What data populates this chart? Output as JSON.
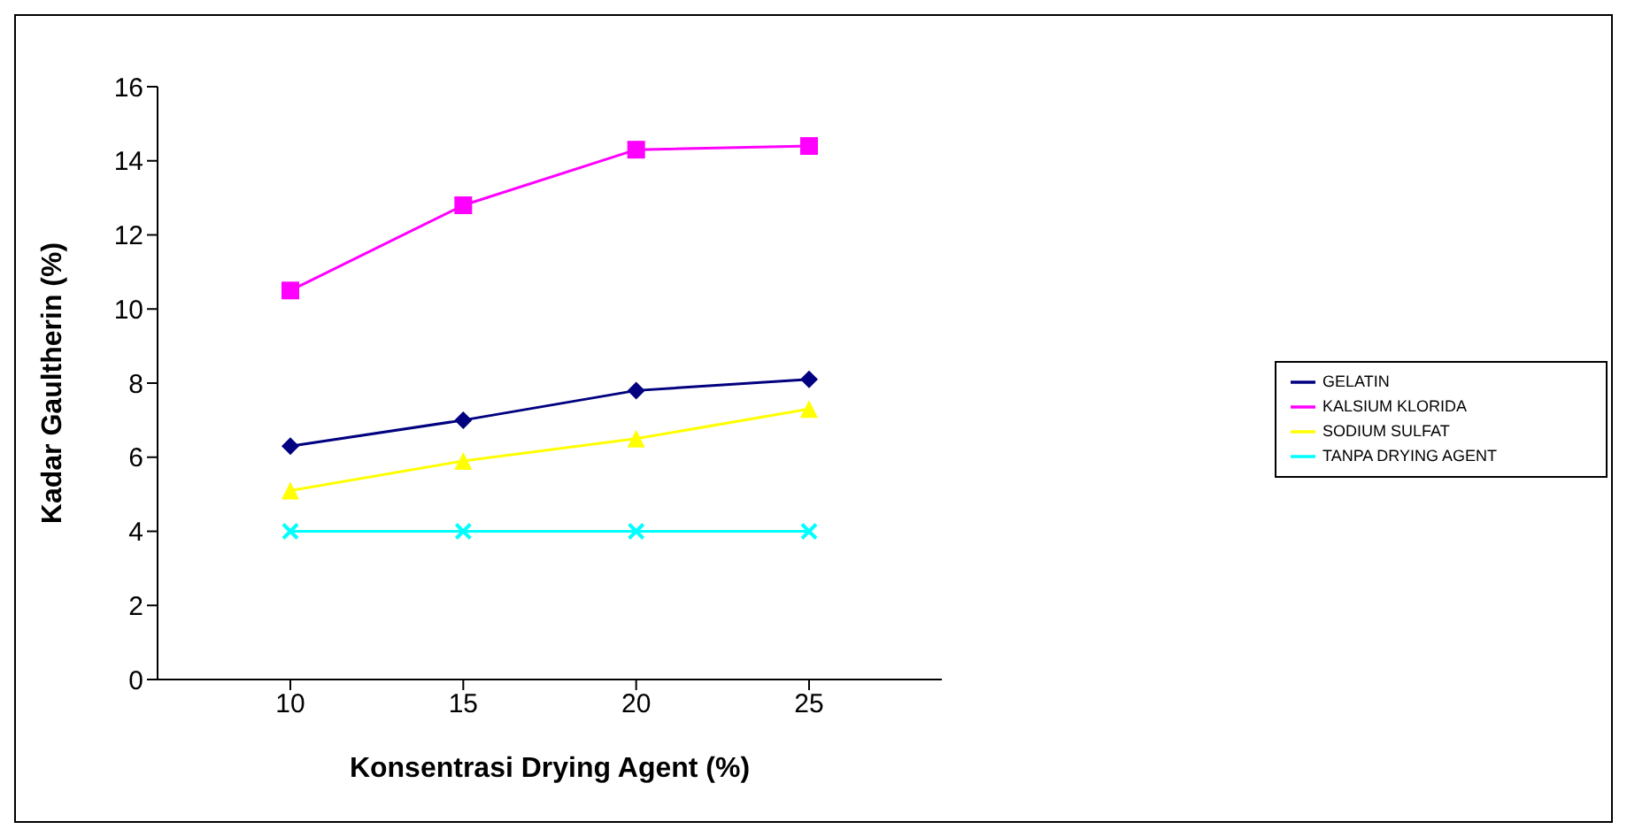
{
  "chart_data": {
    "type": "line",
    "xlabel": "Konsentrasi Drying Agent (%)",
    "ylabel": "Kadar Gaultherin (%)",
    "categories": [
      "10",
      "15",
      "20",
      "25"
    ],
    "series": [
      {
        "name": "GELATIN",
        "color": "#000080",
        "marker": "diamond",
        "values": [
          6.3,
          7.0,
          7.8,
          8.1
        ]
      },
      {
        "name": "KALSIUM KLORIDA",
        "color": "#ff00ff",
        "marker": "square",
        "values": [
          10.5,
          12.8,
          14.3,
          14.4
        ]
      },
      {
        "name": "SODIUM SULFAT",
        "color": "#ffff00",
        "marker": "triangle",
        "values": [
          5.1,
          5.9,
          6.5,
          7.3
        ]
      },
      {
        "name": "TANPA DRYING AGENT",
        "color": "#00ffff",
        "marker": "cross",
        "values": [
          4.0,
          4.0,
          4.0,
          4.0
        ]
      }
    ],
    "ylim": [
      0,
      16
    ],
    "yticks": [
      0,
      2,
      4,
      6,
      8,
      10,
      12,
      14,
      16
    ],
    "grid": false,
    "legend": "right",
    "line_style": "solid"
  }
}
